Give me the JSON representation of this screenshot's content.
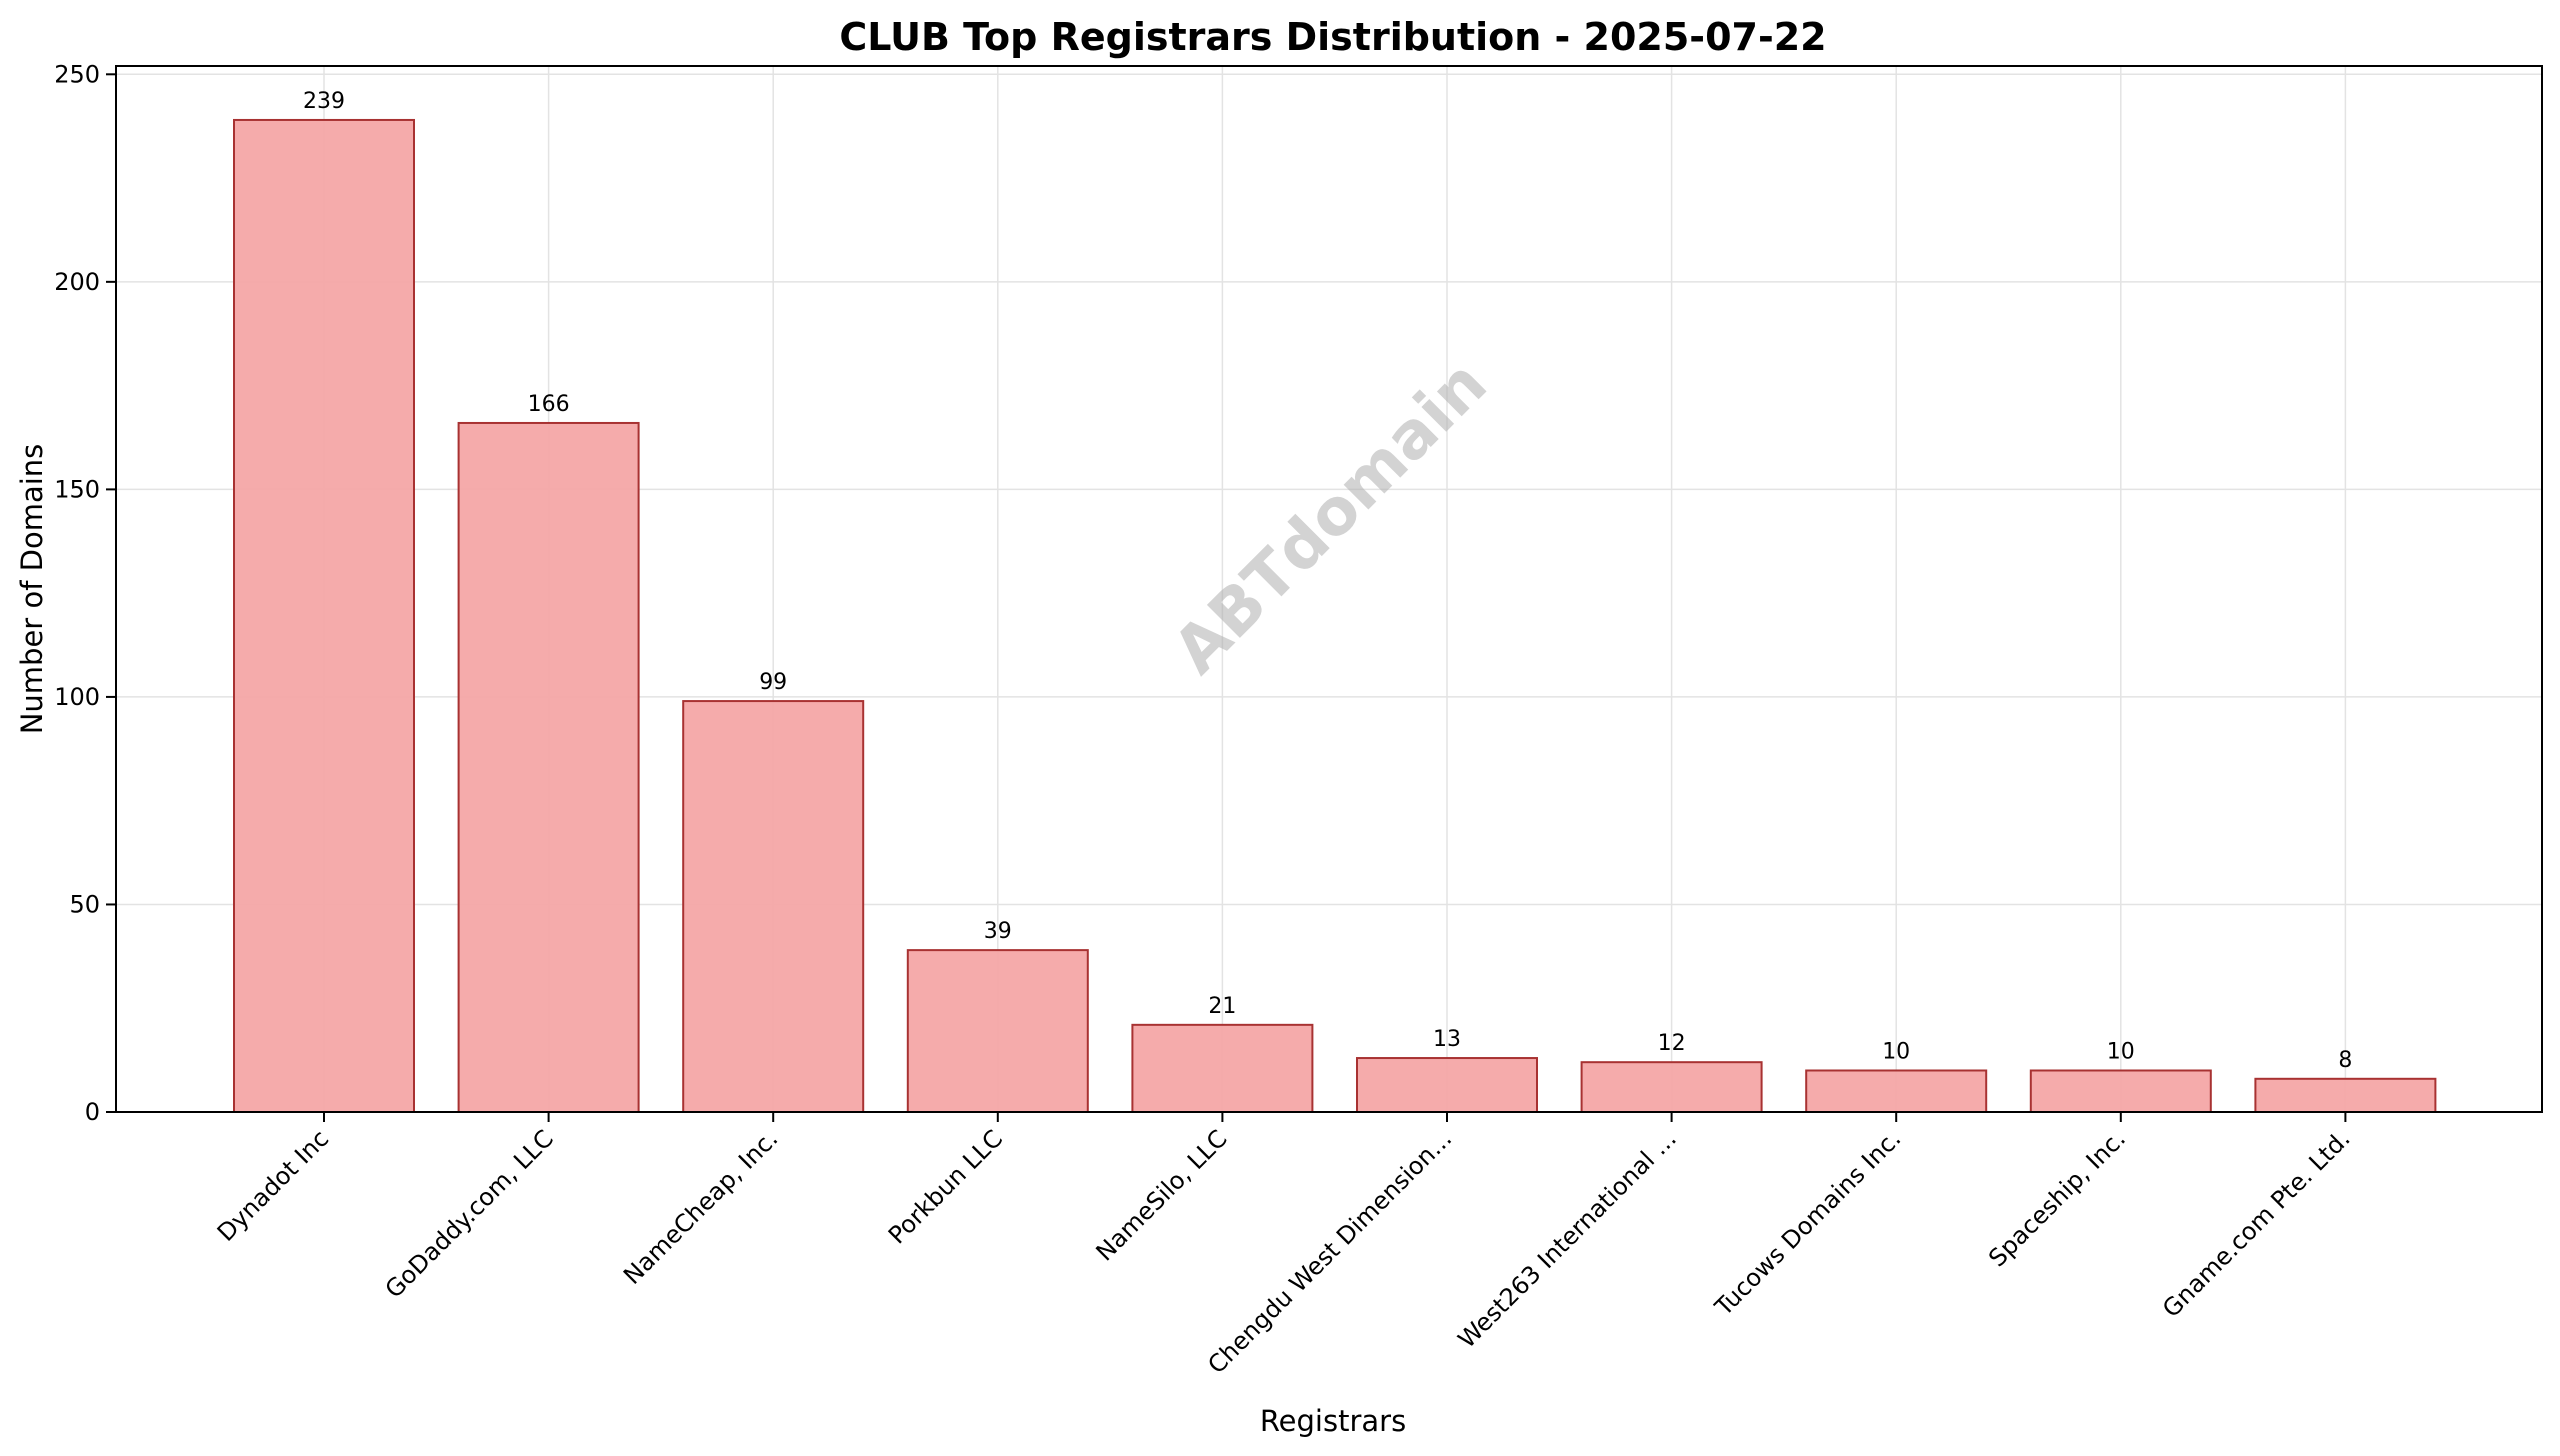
{
  "chart_data": {
    "type": "bar",
    "title": "CLUB Top Registrars Distribution - 2025-07-22",
    "xlabel": "Registrars",
    "ylabel": "Number of Domains",
    "categories": [
      "Dynadot Inc",
      "GoDaddy.com, LLC",
      "NameCheap, Inc.",
      "Porkbun LLC",
      "NameSilo, LLC",
      "Chengdu West Dimension...",
      "West263 International ...",
      "Tucows Domains Inc.",
      "Spaceship, Inc.",
      "Gname.com Pte. Ltd."
    ],
    "values": [
      239,
      166,
      99,
      39,
      21,
      13,
      12,
      10,
      10,
      8
    ],
    "ylim": [
      0,
      252
    ],
    "yticks": [
      0,
      50,
      100,
      150,
      200,
      250
    ],
    "grid": true,
    "legend": "none",
    "bar_fill": "#f4a7a7",
    "bar_edge": "#a83232",
    "watermark": "ABTdomain"
  }
}
